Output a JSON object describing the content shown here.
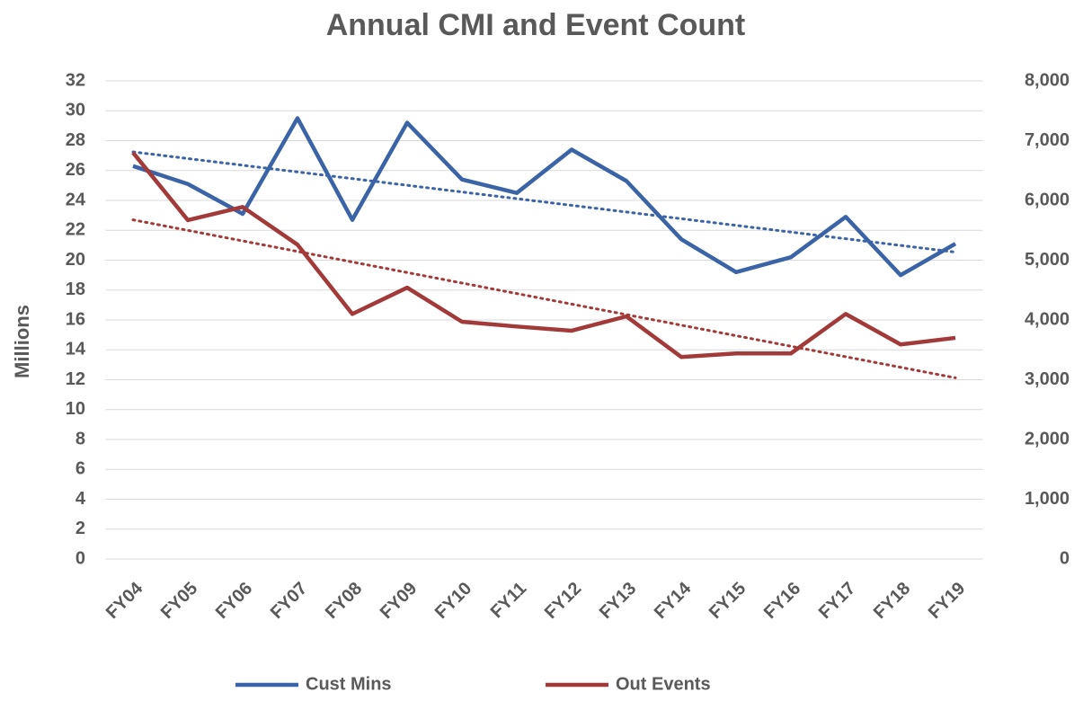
{
  "chart_data": {
    "type": "line",
    "title": "Annual CMI and Event Count",
    "ylabel": "Millions",
    "categories": [
      "FY04",
      "FY05",
      "FY06",
      "FY07",
      "FY08",
      "FY09",
      "FY10",
      "FY11",
      "FY12",
      "FY13",
      "FY14",
      "FY15",
      "FY16",
      "FY17",
      "FY18",
      "FY19"
    ],
    "series": [
      {
        "name": "Cust Mins",
        "color": "#3a64a5",
        "axis": "y",
        "trendline": "linear",
        "values": [
          26.3,
          25.1,
          23.1,
          29.5,
          22.7,
          29.2,
          25.4,
          24.5,
          27.4,
          25.3,
          21.4,
          19.2,
          20.2,
          22.9,
          19.0,
          21.1
        ]
      },
      {
        "name": "Out Events",
        "color": "#a33a3a",
        "axis": "y2",
        "trendline": "linear",
        "values": [
          6800,
          5670,
          5890,
          5260,
          4100,
          4540,
          3970,
          3890,
          3820,
          4060,
          3380,
          3440,
          3440,
          4100,
          3590,
          3700
        ]
      }
    ],
    "ylim": [
      0,
      32
    ],
    "yticks": [
      0,
      2,
      4,
      6,
      8,
      10,
      12,
      14,
      16,
      18,
      20,
      22,
      24,
      26,
      28,
      30,
      32
    ],
    "y2lim": [
      0,
      8000
    ],
    "y2ticks": [
      0,
      {
        "value": 1000,
        "label": "1,000"
      },
      {
        "value": 2000,
        "label": "2,000"
      },
      {
        "value": 3000,
        "label": "3,000"
      },
      {
        "value": 4000,
        "label": "4,000"
      },
      {
        "value": 5000,
        "label": "5,000"
      },
      {
        "value": 6000,
        "label": "6,000"
      },
      {
        "value": 7000,
        "label": "7,000"
      },
      {
        "value": 8000,
        "label": "8,000"
      }
    ],
    "grid": true,
    "legend": "bottom"
  }
}
